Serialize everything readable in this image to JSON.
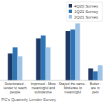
{
  "chart_data": {
    "type": "bar",
    "categories": [
      "Deteriorated -\nlender to reach\npeople",
      "Improved - More\nmeaningful and\nsubstantive",
      "Stayed the same -\nModerate to\nmeaningful",
      "Better -\nare m\npers"
    ],
    "series": [
      {
        "name": "4Q20 Survey",
        "color": "#1f3864",
        "values": [
          18,
          28,
          33,
          8
        ]
      },
      {
        "name": "1Q21 Survey",
        "color": "#2e75b6",
        "values": [
          22,
          30,
          34,
          6
        ]
      },
      {
        "name": "2Q21 Survey",
        "color": "#9dc3e6",
        "values": [
          16,
          22,
          38,
          10
        ]
      }
    ],
    "ylim": [
      0,
      50
    ],
    "tick_labels": false,
    "legend": "upper right",
    "source": "PC's Quarterly Lender Survey"
  }
}
